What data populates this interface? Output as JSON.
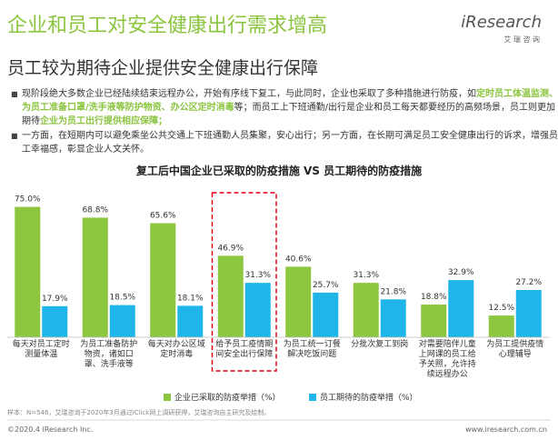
{
  "header": {
    "title": "企业和员工对安全健康出行需求增高",
    "subtitle": "员工较为期待企业提供安全健康出行保障",
    "logo": "iResearch",
    "logo_sub": "艾 瑞 咨 询"
  },
  "bullets": [
    {
      "parts": [
        "现阶段绝大多数企业已经陆续结束远程办公，开始有序线下复工，与此同时，企业也采取了多种措施进行防疫，如",
        "定时员工体温监测、为员工准备口罩/洗手液等防护物资、办公区定时消毒",
        "等；而员工上下班通勤/出行是企业和员工每天都要经历的高频场景，员工则更加期待",
        "企业为员工出行提供相应保障；"
      ]
    },
    {
      "parts": [
        "一方面，在短期内可以避免乘坐公共交通上下班通勤人员集聚，安心出行；另一方面，在长期可满足员工安全健康出行的诉求，增强员工幸福感，彰显企业人文关怀。"
      ]
    }
  ],
  "chart_data": {
    "type": "bar",
    "title": "复工后中国企业已采取的防疫措施 VS 员工期待的防疫措施",
    "categories": [
      "每天对员工定时测量体温",
      "为员工准备防护物资，诸如口罩、洗手液等",
      "每天对办公区域定时消毒",
      "给予员工疫情期间安全出行保障",
      "为员工统一订餐解决吃饭问题",
      "分批次复工到岗",
      "对需要陪伴儿童上网课的员工给予关照，允许持续远程办公",
      "为员工提供疫情心理辅导"
    ],
    "series": [
      {
        "name": "企业已采取的防疫举措（%）",
        "color": "#8dc63f",
        "values": [
          75.0,
          68.8,
          65.6,
          46.9,
          40.6,
          31.3,
          18.8,
          12.5
        ],
        "value_labels": [
          "75.0%",
          "68.8%",
          "65.6%",
          "46.9%",
          "40.6%",
          "31.3%",
          "18.8%",
          "12.5%"
        ]
      },
      {
        "name": "员工期待的防疫举措（%）",
        "color": "#1fb5e8",
        "values": [
          17.9,
          18.5,
          18.1,
          31.3,
          25.7,
          21.8,
          32.9,
          27.2
        ],
        "value_labels": [
          "17.9%",
          "18.5%",
          "18.1%",
          "31.3%",
          "25.7%",
          "21.8%",
          "32.9%",
          "27.2%"
        ]
      }
    ],
    "ylim": [
      0,
      80
    ],
    "highlight_index": 3
  },
  "footer": {
    "source": "样本：N=546，艾瑞咨询于2020年3月通过iClick网上调研获得，艾瑞咨询自主研究及绘制。",
    "copyright": "©2020.4 iResearch Inc.",
    "website": "www.iresearch.com.cn"
  }
}
